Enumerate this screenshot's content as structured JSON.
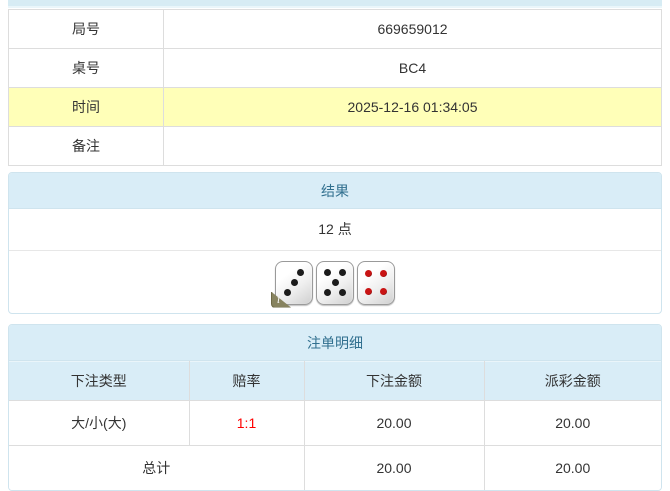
{
  "info_table": {
    "rows": [
      {
        "label": "局号",
        "value": "669659012",
        "highlight": false
      },
      {
        "label": "桌号",
        "value": "BC4",
        "highlight": false
      },
      {
        "label": "时间",
        "value": "2025-12-16 01:34:05",
        "highlight": true
      },
      {
        "label": "备注",
        "value": "",
        "highlight": false
      }
    ]
  },
  "result_panel": {
    "title": "结果",
    "points": "12 点",
    "info_icon_glyph": "i",
    "dice": [
      {
        "value": 3,
        "pip_color": "#1c1c1c",
        "info_badge": true
      },
      {
        "value": 5,
        "pip_color": "#1c1c1c",
        "info_badge": false
      },
      {
        "value": 4,
        "pip_color": "#c91414",
        "info_badge": false
      }
    ]
  },
  "bets_panel": {
    "title": "注单明细",
    "columns": [
      "下注类型",
      "赔率",
      "下注金额",
      "派彩金额"
    ],
    "rows": [
      {
        "type": "大/小(大)",
        "odds": "1:1",
        "bet": "20.00",
        "payout": "20.00"
      }
    ],
    "total": {
      "label": "总计",
      "bet": "20.00",
      "payout": "20.00"
    }
  },
  "colors": {
    "section_header_bg": "#d9edf7",
    "section_header_text": "#31708f",
    "highlight_row_bg": "#ffffb8",
    "odds_red": "#ff0000",
    "panel_border": "#cfe4ee",
    "cell_border": "#dddddd",
    "pip_black": "#1c1c1c",
    "pip_red": "#c91414",
    "info_badge_bg": "#87835f"
  }
}
